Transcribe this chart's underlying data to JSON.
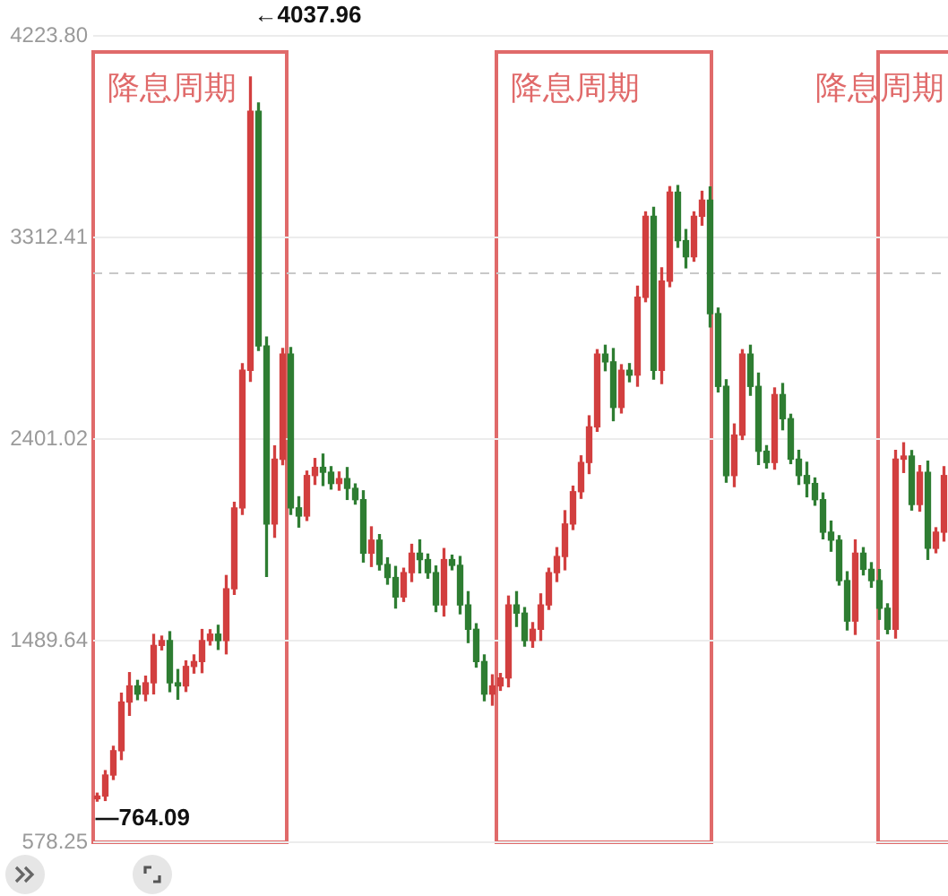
{
  "chart_data": {
    "type": "candlestick",
    "categories": [
      null,
      null,
      null,
      null,
      null,
      null,
      null,
      null,
      null,
      null,
      null,
      null,
      null,
      null,
      null,
      null,
      null,
      null,
      null,
      null,
      null,
      null,
      null,
      null,
      null,
      null,
      null,
      null,
      null,
      null,
      null,
      null,
      null,
      null,
      null,
      null,
      null,
      null,
      null,
      null,
      null,
      null,
      null,
      null,
      null,
      null,
      null,
      null,
      null,
      null,
      null,
      null,
      null,
      null,
      null,
      null,
      null,
      null,
      null,
      null,
      null,
      null,
      null,
      null,
      null,
      null,
      null,
      null,
      null,
      null,
      null,
      null,
      null,
      null,
      null,
      null,
      null,
      null,
      null,
      null,
      null,
      null,
      null,
      null,
      null,
      null,
      null,
      null,
      null,
      null,
      null,
      null,
      null,
      null,
      null,
      null,
      null,
      null,
      null,
      null,
      null,
      null,
      null,
      null,
      null,
      null
    ],
    "ohlc": [
      [
        775,
        800,
        764.09,
        787
      ],
      [
        787,
        902,
        767,
        882
      ],
      [
        882,
        1012,
        862,
        992
      ],
      [
        992,
        1252,
        952,
        1212
      ],
      [
        1212,
        1345,
        1152,
        1285
      ],
      [
        1285,
        1310,
        1223,
        1248
      ],
      [
        1248,
        1329,
        1218,
        1299
      ],
      [
        1299,
        1518,
        1249,
        1468
      ],
      [
        1468,
        1510,
        1448,
        1490
      ],
      [
        1490,
        1530,
        1259,
        1299
      ],
      [
        1299,
        1359,
        1225,
        1285
      ],
      [
        1285,
        1398,
        1260,
        1373
      ],
      [
        1373,
        1425,
        1343,
        1395
      ],
      [
        1395,
        1540,
        1345,
        1490
      ],
      [
        1490,
        1539,
        1470,
        1519
      ],
      [
        1519,
        1559,
        1450,
        1490
      ],
      [
        1490,
        1784,
        1430,
        1724
      ],
      [
        1724,
        2115,
        1699,
        2090
      ],
      [
        2090,
        2742,
        2060,
        2712
      ],
      [
        2712,
        4037.96,
        2662,
        3883
      ],
      [
        3883,
        3920,
        2802,
        2822
      ],
      [
        2822,
        2862,
        1780,
        2017
      ],
      [
        2017,
        2370,
        1957,
        2310
      ],
      [
        2310,
        2810,
        2285,
        2785
      ],
      [
        2785,
        2815,
        2060,
        2090
      ],
      [
        2090,
        2140,
        2003,
        2053
      ],
      [
        2053,
        2256,
        2033,
        2236
      ],
      [
        2236,
        2313,
        2196,
        2273
      ],
      [
        2273,
        2333,
        2191,
        2251
      ],
      [
        2251,
        2276,
        2175,
        2200
      ],
      [
        2200,
        2252,
        2170,
        2222
      ],
      [
        2222,
        2272,
        2128,
        2178
      ],
      [
        2178,
        2198,
        2107,
        2127
      ],
      [
        2127,
        2167,
        1845,
        1885
      ],
      [
        1885,
        2004,
        1825,
        1944
      ],
      [
        1944,
        1969,
        1809,
        1834
      ],
      [
        1834,
        1864,
        1745,
        1775
      ],
      [
        1775,
        1825,
        1637,
        1687
      ],
      [
        1687,
        1817,
        1667,
        1797
      ],
      [
        1797,
        1925,
        1757,
        1885
      ],
      [
        1885,
        1945,
        1796,
        1856
      ],
      [
        1856,
        1881,
        1772,
        1797
      ],
      [
        1797,
        1827,
        1621,
        1651
      ],
      [
        1651,
        1906,
        1601,
        1856
      ],
      [
        1856,
        1876,
        1810,
        1830
      ],
      [
        1830,
        1870,
        1611,
        1651
      ],
      [
        1651,
        1711,
        1481,
        1541
      ],
      [
        1541,
        1566,
        1370,
        1395
      ],
      [
        1395,
        1425,
        1218,
        1248
      ],
      [
        1248,
        1335,
        1198,
        1285
      ],
      [
        1285,
        1341,
        1265,
        1321
      ],
      [
        1321,
        1691,
        1281,
        1651
      ],
      [
        1651,
        1711,
        1554,
        1614
      ],
      [
        1614,
        1639,
        1465,
        1490
      ],
      [
        1490,
        1571,
        1460,
        1541
      ],
      [
        1541,
        1701,
        1491,
        1651
      ],
      [
        1651,
        1817,
        1631,
        1797
      ],
      [
        1797,
        1910,
        1757,
        1870
      ],
      [
        1870,
        2077,
        1810,
        2017
      ],
      [
        2017,
        2188,
        1992,
        2163
      ],
      [
        2163,
        2325,
        2133,
        2295
      ],
      [
        2295,
        2506,
        2245,
        2456
      ],
      [
        2456,
        2805,
        2436,
        2785
      ],
      [
        2785,
        2825,
        2710,
        2750
      ],
      [
        2750,
        2810,
        2484,
        2544
      ],
      [
        2544,
        2737,
        2519,
        2712
      ],
      [
        2712,
        2742,
        2660,
        2690
      ],
      [
        2690,
        3092,
        2640,
        3042
      ],
      [
        3042,
        3428,
        3022,
        3408
      ],
      [
        3408,
        3448,
        2672,
        2712
      ],
      [
        2712,
        3175,
        2652,
        3115
      ],
      [
        3115,
        3542,
        3090,
        3517
      ],
      [
        3517,
        3547,
        3268,
        3298
      ],
      [
        3298,
        3348,
        3175,
        3225
      ],
      [
        3225,
        3428,
        3205,
        3408
      ],
      [
        3408,
        3521,
        3368,
        3481
      ],
      [
        3481,
        3541,
        2908,
        2968
      ],
      [
        2968,
        2993,
        2614,
        2639
      ],
      [
        2639,
        2669,
        2206,
        2236
      ],
      [
        2236,
        2469,
        2186,
        2419
      ],
      [
        2419,
        2805,
        2399,
        2785
      ],
      [
        2785,
        2825,
        2599,
        2639
      ],
      [
        2639,
        2699,
        2286,
        2346
      ],
      [
        2346,
        2371,
        2270,
        2295
      ],
      [
        2295,
        2632,
        2265,
        2602
      ],
      [
        2602,
        2652,
        2443,
        2493
      ],
      [
        2493,
        2513,
        2290,
        2310
      ],
      [
        2310,
        2350,
        2196,
        2236
      ],
      [
        2236,
        2296,
        2140,
        2200
      ],
      [
        2200,
        2225,
        2102,
        2127
      ],
      [
        2127,
        2157,
        1950,
        1980
      ],
      [
        1980,
        2030,
        1894,
        1944
      ],
      [
        1944,
        1964,
        1741,
        1761
      ],
      [
        1761,
        1801,
        1538,
        1578
      ],
      [
        1578,
        1945,
        1518,
        1885
      ],
      [
        1885,
        1910,
        1787,
        1812
      ],
      [
        1812,
        1842,
        1731,
        1761
      ],
      [
        1761,
        1811,
        1586,
        1636
      ],
      [
        1636,
        1656,
        1521,
        1541
      ],
      [
        1541,
        2350,
        1501,
        2310
      ],
      [
        2310,
        2384,
        2250,
        2324
      ],
      [
        2324,
        2349,
        2080,
        2105
      ],
      [
        2105,
        2281,
        2075,
        2251
      ],
      [
        2251,
        2301,
        1857,
        1907
      ],
      [
        1907,
        2000,
        1887,
        1980
      ],
      [
        1980,
        2276,
        1940,
        2236
      ]
    ],
    "colors": [
      "#d23f3f",
      "#d23f3f",
      "#d23f3f",
      "#d23f3f",
      "#d23f3f",
      "#2e7d32",
      "#d23f3f",
      "#d23f3f",
      "#d23f3f",
      "#2e7d32",
      "#2e7d32",
      "#d23f3f",
      "#d23f3f",
      "#d23f3f",
      "#d23f3f",
      "#2e7d32",
      "#d23f3f",
      "#d23f3f",
      "#d23f3f",
      "#d23f3f",
      "#2e7d32",
      "#2e7d32",
      "#d23f3f",
      "#d23f3f",
      "#2e7d32",
      "#2e7d32",
      "#d23f3f",
      "#d23f3f",
      "#2e7d32",
      "#2e7d32",
      "#d23f3f",
      "#2e7d32",
      "#2e7d32",
      "#2e7d32",
      "#d23f3f",
      "#2e7d32",
      "#2e7d32",
      "#2e7d32",
      "#d23f3f",
      "#d23f3f",
      "#2e7d32",
      "#2e7d32",
      "#2e7d32",
      "#d23f3f",
      "#2e7d32",
      "#2e7d32",
      "#2e7d32",
      "#2e7d32",
      "#2e7d32",
      "#d23f3f",
      "#d23f3f",
      "#d23f3f",
      "#2e7d32",
      "#2e7d32",
      "#d23f3f",
      "#d23f3f",
      "#d23f3f",
      "#d23f3f",
      "#d23f3f",
      "#d23f3f",
      "#d23f3f",
      "#d23f3f",
      "#d23f3f",
      "#2e7d32",
      "#2e7d32",
      "#d23f3f",
      "#2e7d32",
      "#d23f3f",
      "#d23f3f",
      "#2e7d32",
      "#d23f3f",
      "#d23f3f",
      "#2e7d32",
      "#2e7d32",
      "#d23f3f",
      "#d23f3f",
      "#2e7d32",
      "#2e7d32",
      "#2e7d32",
      "#d23f3f",
      "#d23f3f",
      "#2e7d32",
      "#2e7d32",
      "#2e7d32",
      "#d23f3f",
      "#2e7d32",
      "#2e7d32",
      "#2e7d32",
      "#2e7d32",
      "#2e7d32",
      "#2e7d32",
      "#2e7d32",
      "#2e7d32",
      "#2e7d32",
      "#d23f3f",
      "#2e7d32",
      "#2e7d32",
      "#2e7d32",
      "#2e7d32",
      "#d23f3f",
      "#d23f3f",
      "#2e7d32",
      "#d23f3f",
      "#2e7d32",
      "#d23f3f",
      "#d23f3f"
    ],
    "ylim": [
      578.25,
      4223.8
    ],
    "yticks": [
      {
        "value": 4223.8,
        "label": "4223.80"
      },
      3312.41,
      2401.02,
      1489.64,
      578.25
    ],
    "grid": "y",
    "tick_labels": "y",
    "ref_lines": [
      {
        "axis": "y",
        "value": 3150,
        "color": "#c8c8c8",
        "line_style": "dashed"
      }
    ],
    "annotations": [
      "降息周期",
      "降息周期",
      "降息周期",
      "←4037.96",
      "—764.09"
    ]
  }
}
